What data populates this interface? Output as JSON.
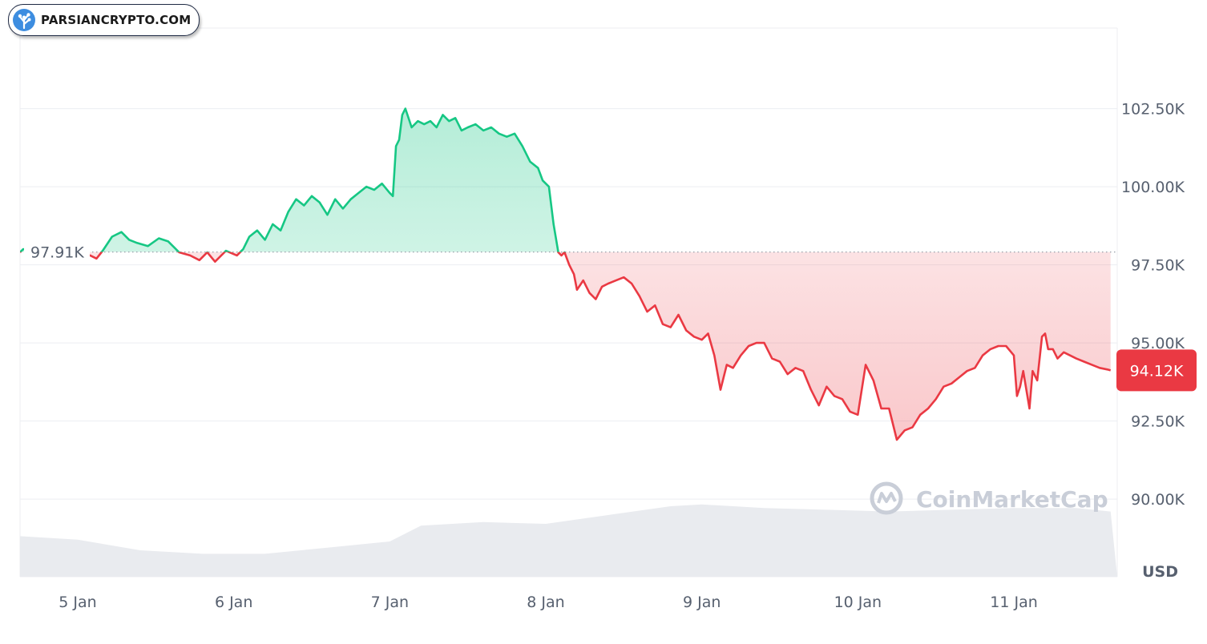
{
  "brand": {
    "text": "PARSIANCRYPTO.COM"
  },
  "watermark": {
    "text": "CoinMarketCap"
  },
  "chart_data": {
    "type": "area",
    "xlabel": "",
    "ylabel": "",
    "unit_label": "USD",
    "reference_value": 97910,
    "reference_label": "97.91K",
    "last_value": 94120,
    "last_label": "94.12K",
    "ylim": [
      88500,
      103500
    ],
    "xlim": [
      4.63,
      11.62
    ],
    "y_ticks": [
      {
        "value": 90000,
        "label": "90.00K"
      },
      {
        "value": 92500,
        "label": "92.50K"
      },
      {
        "value": 95000,
        "label": "95.00K"
      },
      {
        "value": 97500,
        "label": "97.50K"
      },
      {
        "value": 100000,
        "label": "100.00K"
      },
      {
        "value": 102500,
        "label": "102.50K"
      }
    ],
    "x_ticks": [
      {
        "value": 5,
        "label": "5 Jan"
      },
      {
        "value": 6,
        "label": "6 Jan"
      },
      {
        "value": 7,
        "label": "7 Jan"
      },
      {
        "value": 8,
        "label": "8 Jan"
      },
      {
        "value": 9,
        "label": "9 Jan"
      },
      {
        "value": 10,
        "label": "10 Jan"
      },
      {
        "value": 11,
        "label": "11 Jan"
      }
    ],
    "up_color": "#16c784",
    "down_color": "#ea3943",
    "grid": true,
    "series": [
      {
        "x": [
          4.63,
          4.65,
          5.08,
          5.12,
          5.16,
          5.22,
          5.28,
          5.33,
          5.38,
          5.45,
          5.52,
          5.58,
          5.65,
          5.72,
          5.78,
          5.83,
          5.88,
          5.95,
          6.02,
          6.06,
          6.1,
          6.15,
          6.2,
          6.25,
          6.3,
          6.35,
          6.4,
          6.45,
          6.5,
          6.55,
          6.6,
          6.65,
          6.7,
          6.75,
          6.8,
          6.85,
          6.9,
          6.95,
          7.0,
          7.02,
          7.04,
          7.06,
          7.08,
          7.1,
          7.14,
          7.18,
          7.22,
          7.26,
          7.3,
          7.34,
          7.38,
          7.42,
          7.46,
          7.5,
          7.55,
          7.6,
          7.65,
          7.7,
          7.75,
          7.8,
          7.85,
          7.9,
          7.95,
          7.98,
          8.02,
          8.05,
          8.08,
          8.1,
          8.12,
          8.15,
          8.18,
          8.2,
          8.24,
          8.28,
          8.32,
          8.36,
          8.4,
          8.45,
          8.5,
          8.55,
          8.6,
          8.65,
          8.7,
          8.75,
          8.8,
          8.85,
          8.9,
          8.95,
          9.0,
          9.04,
          9.08,
          9.12,
          9.16,
          9.2,
          9.25,
          9.3,
          9.35,
          9.4,
          9.45,
          9.5,
          9.55,
          9.6,
          9.65,
          9.7,
          9.75,
          9.8,
          9.85,
          9.9,
          9.95,
          10.0,
          10.05,
          10.1,
          10.15,
          10.2,
          10.25,
          10.3,
          10.35,
          10.4,
          10.45,
          10.5,
          10.55,
          10.6,
          10.65,
          10.7,
          10.75,
          10.8,
          10.85,
          10.9,
          10.95,
          11.0,
          11.02,
          11.04,
          11.06,
          11.08,
          11.1,
          11.12,
          11.15,
          11.18,
          11.2,
          11.22,
          11.25,
          11.28,
          11.32,
          11.36,
          11.4,
          11.45,
          11.5,
          11.55,
          11.6,
          11.62
        ],
        "y": [
          97900,
          98000,
          97800,
          97700,
          97950,
          98400,
          98550,
          98300,
          98200,
          98100,
          98350,
          98250,
          97900,
          97800,
          97650,
          97900,
          97600,
          97950,
          97800,
          98000,
          98400,
          98600,
          98300,
          98800,
          98600,
          99200,
          99600,
          99400,
          99700,
          99500,
          99100,
          99600,
          99300,
          99600,
          99800,
          100000,
          99900,
          100100,
          99800,
          99700,
          101300,
          101500,
          102300,
          102500,
          101900,
          102100,
          102000,
          102100,
          101900,
          102300,
          102100,
          102200,
          101800,
          101900,
          102000,
          101800,
          101900,
          101700,
          101600,
          101700,
          101300,
          100800,
          100600,
          100200,
          100000,
          98800,
          97900,
          97800,
          97900,
          97500,
          97200,
          96700,
          97000,
          96600,
          96400,
          96800,
          96900,
          97000,
          97100,
          96900,
          96500,
          96000,
          96200,
          95600,
          95500,
          95900,
          95400,
          95200,
          95100,
          95300,
          94600,
          93500,
          94300,
          94200,
          94600,
          94900,
          95000,
          95000,
          94500,
          94400,
          94000,
          94200,
          94100,
          93500,
          93000,
          93600,
          93300,
          93200,
          92800,
          92700,
          94300,
          93800,
          92900,
          92900,
          91900,
          92200,
          92300,
          92700,
          92900,
          93200,
          93600,
          93700,
          93900,
          94100,
          94200,
          94600,
          94800,
          94900,
          94900,
          94600,
          93300,
          93600,
          94100,
          93500,
          92900,
          94100,
          93800,
          95200,
          95300,
          94800,
          94800,
          94500,
          94700,
          94600,
          94500,
          94400,
          94300,
          94200,
          94150,
          94120
        ]
      }
    ],
    "volume": {
      "x": [
        4.63,
        5.0,
        5.4,
        5.8,
        6.2,
        6.6,
        7.0,
        7.2,
        7.6,
        8.0,
        8.4,
        8.8,
        9.0,
        9.4,
        9.8,
        10.2,
        10.6,
        11.0,
        11.4,
        11.62
      ],
      "y": [
        0.46,
        0.42,
        0.3,
        0.26,
        0.26,
        0.33,
        0.4,
        0.58,
        0.62,
        0.6,
        0.7,
        0.8,
        0.82,
        0.78,
        0.76,
        0.74,
        0.76,
        0.78,
        0.78,
        0.74
      ]
    }
  }
}
